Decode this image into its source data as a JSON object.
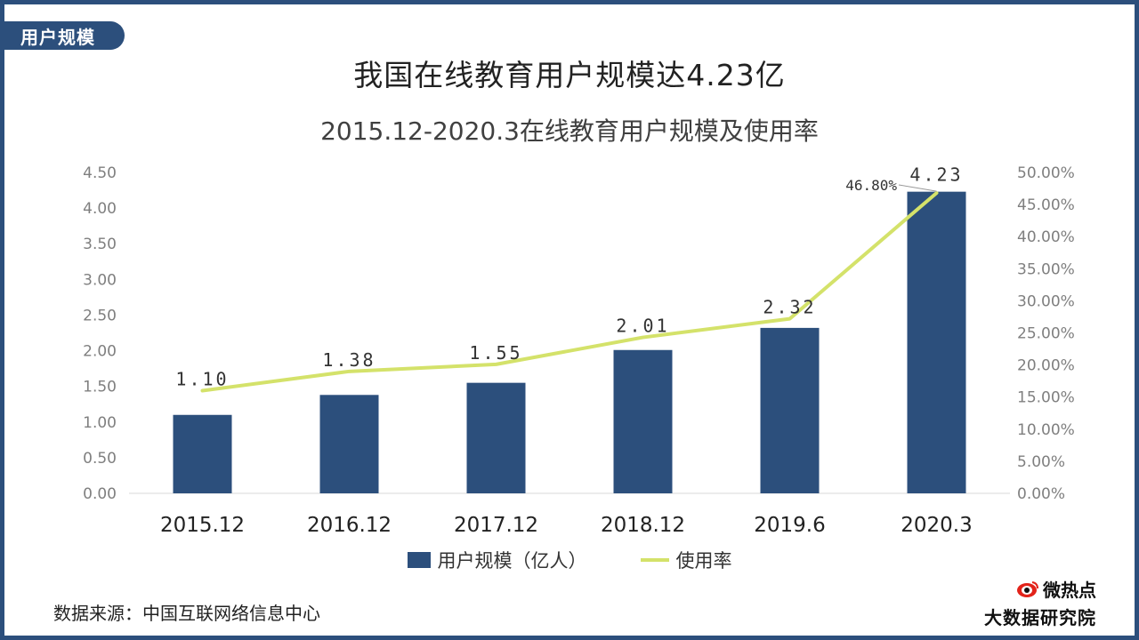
{
  "section_tag": "用户规模",
  "main_title": "我国在线教育用户规模达4.23亿",
  "source": "数据来源：中国互联网络信息中心",
  "logo": {
    "brand": "微热点",
    "institute": "大数据研究院"
  },
  "colors": {
    "bar": "#2c4f7c",
    "line": "#d4e26a",
    "frame": "#2c4f7c"
  },
  "chart_data": {
    "type": "bar",
    "title": "2015.12-2020.3在线教育用户规模及使用率",
    "categories": [
      "2015.12",
      "2016.12",
      "2017.12",
      "2018.12",
      "2019.6",
      "2020.3"
    ],
    "series": [
      {
        "name": "用户规模（亿人）",
        "type": "bar",
        "axis": "left",
        "values": [
          1.1,
          1.38,
          1.55,
          2.01,
          2.32,
          4.23
        ],
        "labels": [
          "1.10",
          "1.38",
          "1.55",
          "2.01",
          "2.32",
          "4.23"
        ]
      },
      {
        "name": "使用率",
        "type": "line",
        "axis": "right",
        "values": [
          16.0,
          19.0,
          20.1,
          24.3,
          27.2,
          46.8
        ],
        "labels": [
          "",
          "",
          "",
          "",
          "",
          "46.80%"
        ]
      }
    ],
    "ylim_left": [
      0,
      4.5
    ],
    "yticks_left": [
      "0.00",
      "0.50",
      "1.00",
      "1.50",
      "2.00",
      "2.50",
      "3.00",
      "3.50",
      "4.00",
      "4.50"
    ],
    "ylim_right": [
      0,
      50
    ],
    "yticks_right": [
      "0.00%",
      "5.00%",
      "10.00%",
      "15.00%",
      "20.00%",
      "25.00%",
      "30.00%",
      "35.00%",
      "40.00%",
      "45.00%",
      "50.00%"
    ],
    "legend": [
      "用户规模（亿人）",
      "使用率"
    ],
    "legend_position": "bottom"
  }
}
